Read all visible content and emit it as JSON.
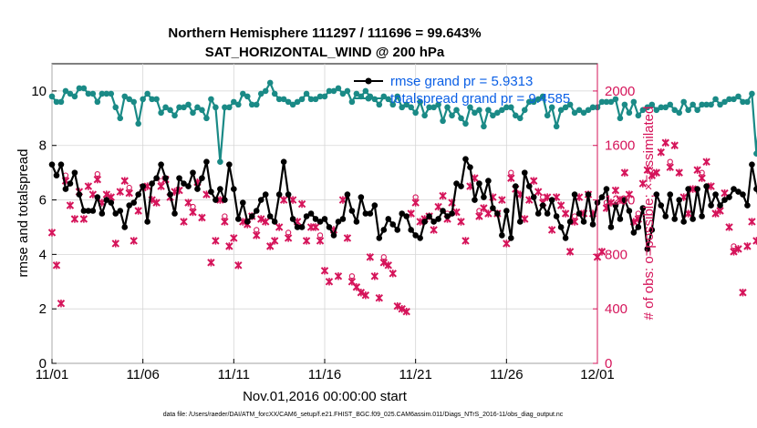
{
  "chart_data": {
    "type": "line",
    "title": "Northern Hemisphere 111297 / 111696 = 99.643%",
    "subtitle": "SAT_HORIZONTAL_WIND @ 200 hPa",
    "xlabel": "Nov.01,2016 00:00:00 start",
    "ylabel": "rmse and totalspread",
    "y2label": "# of obs: o=possible; ×=assimilated",
    "xlim": [
      0,
      30
    ],
    "ylim": [
      0,
      11
    ],
    "y2lim": [
      0,
      2200
    ],
    "x_ticks": [
      0,
      5,
      10,
      15,
      20,
      25,
      30
    ],
    "x_tick_labels": [
      "11/01",
      "11/06",
      "11/11",
      "11/16",
      "11/21",
      "11/26",
      "12/01"
    ],
    "y_ticks": [
      0,
      2,
      4,
      6,
      8,
      10
    ],
    "y_tick_labels": [
      "0",
      "2",
      "4",
      "6",
      "8",
      "10"
    ],
    "y2_ticks": [
      0,
      400,
      800,
      1200,
      1600,
      2000
    ],
    "y2_tick_labels": [
      "0",
      "400",
      "800",
      "1200",
      "1600",
      "2000"
    ],
    "grid": true,
    "legend_position": "top-right",
    "footer": "data file: /Users/raeder/DAI/ATM_forcXX/CAM6_setup/f.e21.FHIST_BGC.f09_025.CAM6assim.011/Diags_NTrS_2016-11/obs_diag_output.nc",
    "colors": {
      "rmse": "#000000",
      "spread": "#1a8a86",
      "obs": "#d5145a",
      "legend_text": "#0a5fe6"
    },
    "series": [
      {
        "name": "rmse grand pr = 5.9313",
        "x_step_days": 0.25,
        "values": [
          7.3,
          6.9,
          7.3,
          6.4,
          6.6,
          7.0,
          6.2,
          5.6,
          5.6,
          5.6,
          6.1,
          5.5,
          6.0,
          5.9,
          5.5,
          5.6,
          5.0,
          5.8,
          5.9,
          6.2,
          6.5,
          5.2,
          6.6,
          6.8,
          7.3,
          6.8,
          6.2,
          5.5,
          6.8,
          6.6,
          6.5,
          7.0,
          6.4,
          6.8,
          7.4,
          6.3,
          6.0,
          6.4,
          6.0,
          7.3,
          6.4,
          5.3,
          5.9,
          5.2,
          5.4,
          5.6,
          6.0,
          6.2,
          5.4,
          5.2,
          6.2,
          7.4,
          6.2,
          5.3,
          5.0,
          5.0,
          5.4,
          5.5,
          5.3,
          5.2,
          5.3,
          5.0,
          4.7,
          5.2,
          5.3,
          6.2,
          5.6,
          5.2,
          6.1,
          5.5,
          5.5,
          5.8,
          4.6,
          4.9,
          5.3,
          5.1,
          4.9,
          5.5,
          5.4,
          4.9,
          4.7,
          4.6,
          5.2,
          5.4,
          5.2,
          5.3,
          5.6,
          5.4,
          5.5,
          6.6,
          6.5,
          7.5,
          7.2,
          6.0,
          6.6,
          6.1,
          6.7,
          5.7,
          5.5,
          4.7,
          5.6,
          4.6,
          6.5,
          5.2,
          7.0,
          6.5,
          6.1,
          5.5,
          5.8,
          5.5,
          6.0,
          5.4,
          5.0,
          4.6,
          5.2,
          6.2,
          5.5,
          5.2,
          6.2,
          5.1,
          5.9,
          6.1,
          6.4,
          5.0,
          5.8,
          5.3,
          6.0,
          5.6,
          4.8,
          5.0,
          5.7,
          4.2,
          4.9,
          6.2,
          5.8,
          5.4,
          6.2,
          5.3,
          6.0,
          5.2,
          6.4,
          5.3,
          6.4,
          5.4,
          6.5,
          5.8,
          6.2,
          5.8,
          6.0,
          6.1,
          6.4,
          6.3,
          6.2,
          5.8,
          7.3,
          6.4,
          5.8,
          5.6,
          6.7,
          6.8,
          6.8,
          6.5,
          6.9,
          6.0,
          7.9,
          6.5,
          6.2,
          5.2,
          9.3,
          6.3,
          6.2,
          6.5,
          4.0,
          5.7,
          6.6,
          7.9,
          5.6,
          6.2,
          7.2,
          6.7,
          6.5,
          6.3,
          5.6,
          6.8,
          5.3,
          7.5,
          6.5,
          5.2,
          4.9,
          4.0,
          3.8,
          4.3,
          5.2
        ]
      },
      {
        "name": "totalspread grand pr = 9.4585",
        "x_step_days": 0.25,
        "values": [
          9.8,
          9.6,
          9.6,
          10.0,
          9.9,
          9.8,
          10.1,
          10.1,
          9.9,
          9.9,
          9.6,
          9.9,
          9.9,
          9.9,
          9.4,
          9.0,
          9.8,
          9.7,
          9.6,
          8.8,
          9.7,
          9.9,
          9.7,
          9.7,
          9.2,
          9.4,
          9.3,
          9.1,
          9.4,
          9.4,
          9.5,
          9.2,
          9.4,
          9.3,
          9.0,
          9.7,
          9.4,
          7.4,
          9.4,
          9.4,
          9.6,
          9.5,
          9.9,
          9.8,
          9.5,
          9.5,
          9.9,
          10.0,
          10.3,
          9.9,
          9.7,
          9.7,
          9.6,
          9.5,
          9.6,
          9.7,
          9.9,
          9.7,
          9.7,
          9.8,
          9.8,
          10.0,
          10.0,
          10.1,
          9.9,
          10.0,
          9.6,
          9.9,
          9.8,
          10.0,
          9.8,
          9.7,
          9.5,
          9.8,
          9.7,
          9.5,
          9.8,
          9.4,
          9.5,
          9.4,
          9.2,
          9.6,
          9.1,
          9.4,
          9.4,
          9.5,
          8.9,
          9.4,
          9.1,
          9.3,
          9.0,
          8.8,
          9.4,
          9.2,
          9.3,
          8.7,
          9.3,
          9.1,
          9.2,
          9.3,
          9.4,
          9.4,
          9.1,
          9.0,
          9.3,
          9.6,
          9.6,
          9.7,
          9.8,
          9.1,
          9.4,
          8.7,
          9.3,
          9.4,
          9.5,
          9.2,
          9.3,
          9.2,
          9.3,
          9.4,
          9.4,
          9.6,
          9.6,
          9.6,
          9.7,
          9.0,
          9.5,
          9.2,
          9.6,
          9.1,
          9.3,
          9.4,
          9.5,
          9.3,
          9.4,
          9.4,
          9.5,
          9.3,
          9.2,
          9.6,
          9.3,
          9.5,
          9.3,
          9.5,
          9.5,
          9.5,
          9.7,
          9.5,
          9.6,
          9.7,
          9.7,
          9.8,
          9.6,
          9.6,
          9.9,
          7.7,
          9.7,
          9.6,
          9.4,
          9.9,
          9.4,
          9.6,
          9.3,
          9.4,
          9.5,
          9.8,
          9.9,
          9.5,
          9.3,
          9.1,
          8.7,
          9.3,
          9.6,
          9.8,
          9.4,
          9.6,
          9.5,
          9.2,
          9.6,
          9.5,
          9.5,
          9.8,
          10.0,
          10.0,
          10.1,
          10.0,
          10.0,
          10.3,
          10.3,
          10.5
        ]
      },
      {
        "name": "obs assimilated",
        "x_step_days": 0.25,
        "values": [
          960,
          720,
          440,
          1340,
          1160,
          1060,
          1260,
          1060,
          1300,
          1240,
          1350,
          1180,
          1240,
          1220,
          880,
          1260,
          1340,
          1250,
          900,
          1120,
          1290,
          1300,
          1200,
          1180,
          1300,
          1350,
          1220,
          1260,
          1270,
          1040,
          1180,
          1110,
          1330,
          1070,
          1240,
          740,
          900,
          1200,
          1040,
          860,
          920,
          720,
          1040,
          1020,
          1080,
          940,
          1060,
          1040,
          860,
          900,
          1000,
          1200,
          920,
          1200,
          1040,
          1170,
          900,
          1000,
          1000,
          900,
          680,
          600,
          980,
          640,
          1200,
          920,
          600,
          560,
          520,
          500,
          780,
          640,
          480,
          740,
          720,
          660,
          420,
          400,
          380,
          1100,
          1180,
          1040,
          1060,
          1080,
          980,
          1150,
          1230,
          1060,
          1180,
          1110,
          1040,
          900,
          1300,
          1360,
          1080,
          1140,
          1100,
          1220,
          1100,
          1200,
          880,
          1360,
          1280,
          1240,
          1060,
          1200,
          1340,
          1260,
          1180,
          1220,
          980,
          1220,
          1160,
          1100,
          820,
          1040,
          1220,
          1100,
          1240,
          1100,
          780,
          820,
          1140,
          1180,
          1270,
          1200,
          1400,
          1240,
          1040,
          1060,
          1320,
          1420,
          1380,
          1400,
          1550,
          1620,
          1440,
          1600,
          1400,
          1220,
          1100,
          1280,
          1420,
          1360,
          1480,
          1300,
          1100,
          1120,
          1250,
          1000,
          820,
          840,
          520,
          860,
          1040,
          900,
          900,
          820,
          740,
          1140,
          1240,
          1000,
          1040,
          840,
          1140,
          1340,
          1000,
          1180,
          1200,
          1160,
          820,
          700,
          1130,
          860,
          680,
          700,
          840,
          920,
          940,
          1000,
          1160,
          900,
          400,
          300,
          380,
          440
        ]
      },
      {
        "name": "obs possible",
        "x_step_days": 0.25,
        "values": [
          960,
          720,
          440,
          1340,
          1160,
          1060,
          1260,
          1060,
          1300,
          1240,
          1350,
          1180,
          1240,
          1220,
          880,
          1260,
          1340,
          1250,
          900,
          1120,
          1290,
          1300,
          1200,
          1180,
          1300,
          1350,
          1220,
          1260,
          1270,
          1040,
          1180,
          1110,
          1330,
          1070,
          1240,
          740,
          900,
          1200,
          1040,
          860,
          920,
          720,
          1040,
          1020,
          1080,
          940,
          1060,
          1040,
          860,
          900,
          1000,
          1200,
          920,
          1200,
          1040,
          1170,
          900,
          1000,
          1000,
          900,
          680,
          600,
          980,
          640,
          1200,
          920,
          600,
          560,
          520,
          500,
          780,
          640,
          480,
          740,
          720,
          660,
          420,
          400,
          380,
          1100,
          1180,
          1040,
          1060,
          1080,
          980,
          1150,
          1230,
          1060,
          1180,
          1110,
          1040,
          900,
          1300,
          1360,
          1080,
          1140,
          1100,
          1220,
          1100,
          1200,
          880,
          1360,
          1280,
          1240,
          1060,
          1200,
          1340,
          1260,
          1180,
          1220,
          980,
          1220,
          1160,
          1100,
          820,
          1040,
          1220,
          1100,
          1240,
          1100,
          780,
          820,
          1140,
          1180,
          1270,
          1200,
          1400,
          1240,
          1040,
          1060,
          1320,
          1420,
          1380,
          1400,
          1550,
          1620,
          1440,
          1600,
          1400,
          1220,
          1100,
          1280,
          1420,
          1360,
          1480,
          1300,
          1100,
          1120,
          1250,
          1000,
          820,
          840,
          520,
          860,
          1040,
          900,
          900,
          820,
          740,
          1140,
          1240,
          1000,
          1040,
          840,
          1140,
          1340,
          1000,
          1180,
          1200,
          1160,
          820,
          700,
          1130,
          860,
          680,
          700,
          840,
          920,
          940,
          1000,
          1160,
          900,
          400,
          300,
          380,
          440
        ]
      }
    ]
  }
}
